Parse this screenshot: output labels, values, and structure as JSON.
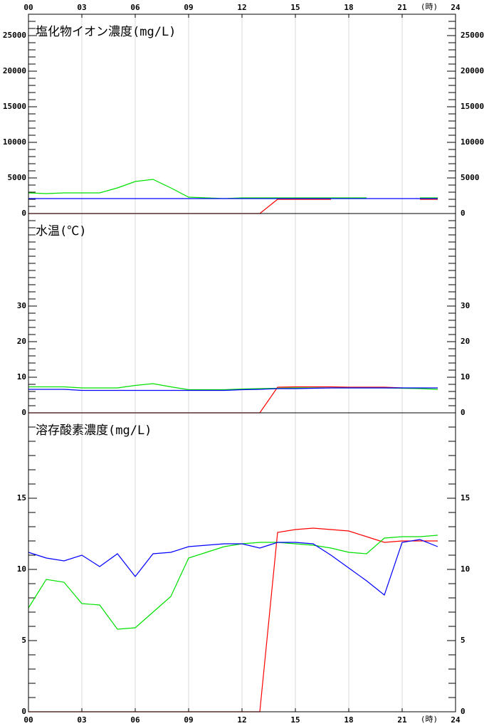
{
  "chart_data": [
    {
      "type": "line",
      "title": "塩化物イオン濃度(mg/L)",
      "xlabel": "(時)",
      "xtick_labels": "top",
      "x": [
        0,
        1,
        2,
        3,
        4,
        5,
        6,
        7,
        8,
        9,
        10,
        11,
        12,
        13,
        14,
        15,
        16,
        17,
        18,
        19,
        20,
        21,
        22,
        23
      ],
      "xlim": [
        0,
        24
      ],
      "xticks": [
        {
          "value": 0,
          "label": "00"
        },
        {
          "value": 3,
          "label": "03"
        },
        {
          "value": 6,
          "label": "06"
        },
        {
          "value": 9,
          "label": "09"
        },
        12,
        15,
        18,
        21,
        24
      ],
      "ylim": [
        0,
        28000
      ],
      "yticks": [
        0,
        5000,
        10000,
        15000,
        20000,
        25000
      ],
      "yminor": 1000,
      "grid": true,
      "series": [
        {
          "color": "#ff0000",
          "values": [
            0,
            0,
            0,
            0,
            0,
            0,
            0,
            0,
            0,
            0,
            0,
            0,
            0,
            0,
            2000,
            2000,
            2000,
            2000,
            null,
            null,
            null,
            null,
            2000,
            2000
          ]
        },
        {
          "color": "#00e000",
          "values": [
            2900,
            2800,
            2900,
            2900,
            2900,
            3600,
            4500,
            4800,
            3600,
            2300,
            2200,
            2100,
            2200,
            2200,
            2200,
            2200,
            2200,
            2200,
            2200,
            2200,
            null,
            null,
            2200,
            2200
          ]
        },
        {
          "color": "#0000ff",
          "values": [
            2100,
            2100,
            2100,
            2100,
            2100,
            2100,
            2100,
            2100,
            2100,
            2100,
            2100,
            2100,
            2100,
            2100,
            2100,
            2100,
            2100,
            2100,
            2100,
            2100,
            2100,
            2100,
            2100,
            2100
          ]
        }
      ]
    },
    {
      "type": "line",
      "title": "水温(℃)",
      "xtick_labels": "none",
      "x": [
        0,
        1,
        2,
        3,
        4,
        5,
        6,
        7,
        8,
        9,
        10,
        11,
        12,
        13,
        14,
        15,
        16,
        17,
        18,
        19,
        20,
        21,
        22,
        23
      ],
      "xlim": [
        0,
        24
      ],
      "xticks": [
        0,
        3,
        6,
        9,
        12,
        15,
        18,
        21,
        24
      ],
      "ylim": [
        0,
        56
      ],
      "yticks": [
        0,
        10,
        20,
        30
      ],
      "yminor": 2,
      "grid": true,
      "series": [
        {
          "color": "#ff0000",
          "values": [
            0,
            0,
            0,
            0,
            0,
            0,
            0,
            0,
            0,
            0,
            0,
            0,
            0,
            0,
            7.2,
            7.3,
            7.3,
            7.3,
            7.2,
            7.2,
            7.2,
            7,
            6.8,
            null
          ]
        },
        {
          "color": "#00e000",
          "values": [
            7.3,
            7.3,
            7.3,
            7,
            7,
            7,
            7.7,
            8.2,
            7.3,
            6.5,
            6.5,
            6.5,
            6.7,
            6.8,
            6.9,
            7,
            7,
            7,
            7,
            7,
            7,
            6.9,
            6.8,
            6.6
          ]
        },
        {
          "color": "#0000ff",
          "values": [
            6.6,
            6.6,
            6.6,
            6.3,
            6.3,
            6.3,
            6.3,
            6.3,
            6.3,
            6.3,
            6.3,
            6.3,
            6.5,
            6.6,
            6.8,
            6.8,
            6.9,
            7,
            7,
            7,
            7,
            7,
            7,
            7
          ]
        }
      ]
    },
    {
      "type": "line",
      "title": "溶存酸素濃度(mg/L)",
      "xlabel": "(時)",
      "xtick_labels": "bottom",
      "x": [
        0,
        1,
        2,
        3,
        4,
        5,
        6,
        7,
        8,
        9,
        10,
        11,
        12,
        13,
        14,
        15,
        16,
        17,
        18,
        19,
        20,
        21,
        22,
        23
      ],
      "xlim": [
        0,
        24
      ],
      "xticks": [
        {
          "value": 0,
          "label": "00"
        },
        {
          "value": 3,
          "label": "03"
        },
        {
          "value": 6,
          "label": "06"
        },
        {
          "value": 9,
          "label": "09"
        },
        12,
        15,
        18,
        21,
        24
      ],
      "ylim": [
        0,
        21
      ],
      "yticks": [
        0,
        5,
        10,
        15
      ],
      "yminor": 1,
      "grid": true,
      "series": [
        {
          "color": "#ff0000",
          "values": [
            0,
            0,
            0,
            0,
            0,
            0,
            0,
            0,
            0,
            0,
            0,
            0,
            0,
            0,
            12.6,
            12.8,
            12.9,
            12.8,
            12.7,
            12.3,
            11.9,
            12,
            12,
            12
          ]
        },
        {
          "color": "#00e000",
          "values": [
            7.3,
            9.3,
            9.1,
            7.6,
            7.5,
            5.8,
            5.9,
            7,
            8.1,
            10.8,
            11.2,
            11.6,
            11.8,
            11.9,
            11.9,
            11.8,
            11.7,
            11.5,
            11.2,
            11.1,
            12.2,
            12.3,
            12.3,
            12.4
          ]
        },
        {
          "color": "#0000ff",
          "values": [
            11.2,
            10.8,
            10.6,
            11,
            10.2,
            11.1,
            9.5,
            11.1,
            11.2,
            11.6,
            11.7,
            11.8,
            11.8,
            11.5,
            11.9,
            11.9,
            11.8,
            11,
            10.1,
            9.2,
            8.2,
            11.9,
            12.1,
            11.6
          ]
        }
      ]
    }
  ]
}
